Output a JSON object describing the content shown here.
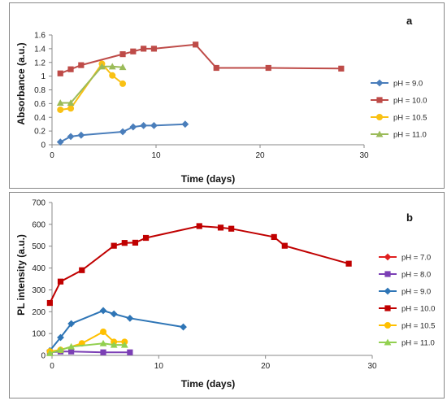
{
  "chart_data": [
    {
      "type": "line",
      "panel_label": "a",
      "xlabel": "Time (days)",
      "ylabel": "Absorbance (a.u.)",
      "xlim": [
        0,
        30
      ],
      "ylim": [
        0,
        1.6
      ],
      "x_ticks": [
        "0",
        "10",
        "20",
        "30"
      ],
      "y_ticks": [
        "0",
        "0.2",
        "0.4",
        "0.6",
        "0.8",
        "1",
        "1.2",
        "1.4",
        "1.6"
      ],
      "legend_position": "right",
      "series": [
        {
          "name": "pH = 9.0",
          "color": "#4a7ebb",
          "marker": "diamond",
          "x": [
            0.8,
            1.8,
            2.8,
            6.8,
            7.8,
            8.8,
            9.8,
            12.8
          ],
          "y": [
            0.04,
            0.12,
            0.14,
            0.19,
            0.26,
            0.28,
            0.28,
            0.3
          ]
        },
        {
          "name": "pH = 10.0",
          "color": "#be4b48",
          "marker": "square",
          "x": [
            0.8,
            1.8,
            2.8,
            6.8,
            7.8,
            8.8,
            9.8,
            13.8,
            15.8,
            20.8,
            27.8
          ],
          "y": [
            1.04,
            1.1,
            1.16,
            1.32,
            1.36,
            1.4,
            1.4,
            1.46,
            1.12,
            1.12,
            1.11
          ]
        },
        {
          "name": "pH = 10.5",
          "color": "#f9c114",
          "marker": "circle",
          "x": [
            0.8,
            1.8,
            4.8,
            5.8,
            6.8
          ],
          "y": [
            0.51,
            0.53,
            1.18,
            1.01,
            0.89
          ]
        },
        {
          "name": "pH = 11.0",
          "color": "#9bbb59",
          "marker": "triangle",
          "x": [
            0.8,
            1.8,
            4.8,
            5.8,
            6.8
          ],
          "y": [
            0.61,
            0.61,
            1.14,
            1.14,
            1.13
          ]
        }
      ]
    },
    {
      "type": "line",
      "panel_label": "b",
      "xlabel": "Time (days)",
      "ylabel": "PL intensity (a.u.)",
      "xlim": [
        0,
        30
      ],
      "ylim": [
        0,
        700
      ],
      "x_ticks": [
        "0",
        "10",
        "20",
        "30"
      ],
      "y_ticks": [
        "0",
        "100",
        "200",
        "300",
        "400",
        "500",
        "600",
        "700"
      ],
      "legend_position": "right",
      "series": [
        {
          "name": "pH = 7.0",
          "color": "#e02020",
          "marker": "diamond",
          "x": [],
          "y": []
        },
        {
          "name": "pH = 8.0",
          "color": "#7b3fb5",
          "marker": "square",
          "x": [
            -0.2,
            0.8,
            1.8,
            4.8,
            7.3
          ],
          "y": [
            14,
            18,
            18,
            14,
            14
          ]
        },
        {
          "name": "pH = 9.0",
          "color": "#2e75b6",
          "marker": "diamond",
          "x": [
            -0.2,
            0.8,
            1.8,
            4.8,
            5.8,
            7.3,
            12.3
          ],
          "y": [
            22,
            82,
            145,
            205,
            190,
            170,
            130
          ]
        },
        {
          "name": "pH = 10.0",
          "color": "#c00000",
          "marker": "square",
          "x": [
            -0.2,
            0.8,
            2.8,
            5.8,
            6.8,
            7.8,
            8.8,
            13.8,
            15.8,
            16.8,
            20.8,
            21.8,
            27.8
          ],
          "y": [
            240,
            338,
            390,
            502,
            515,
            516,
            538,
            592,
            585,
            580,
            542,
            502,
            420
          ]
        },
        {
          "name": "pH = 10.5",
          "color": "#ffc000",
          "marker": "circle",
          "x": [
            -0.2,
            0.8,
            2.8,
            4.8,
            5.8,
            6.8
          ],
          "y": [
            18,
            25,
            55,
            108,
            62,
            62
          ]
        },
        {
          "name": "pH = 11.0",
          "color": "#92d050",
          "marker": "triangle",
          "x": [
            -0.2,
            0.8,
            1.8,
            4.8,
            5.8,
            6.8
          ],
          "y": [
            10,
            25,
            40,
            55,
            48,
            48
          ]
        }
      ]
    }
  ]
}
